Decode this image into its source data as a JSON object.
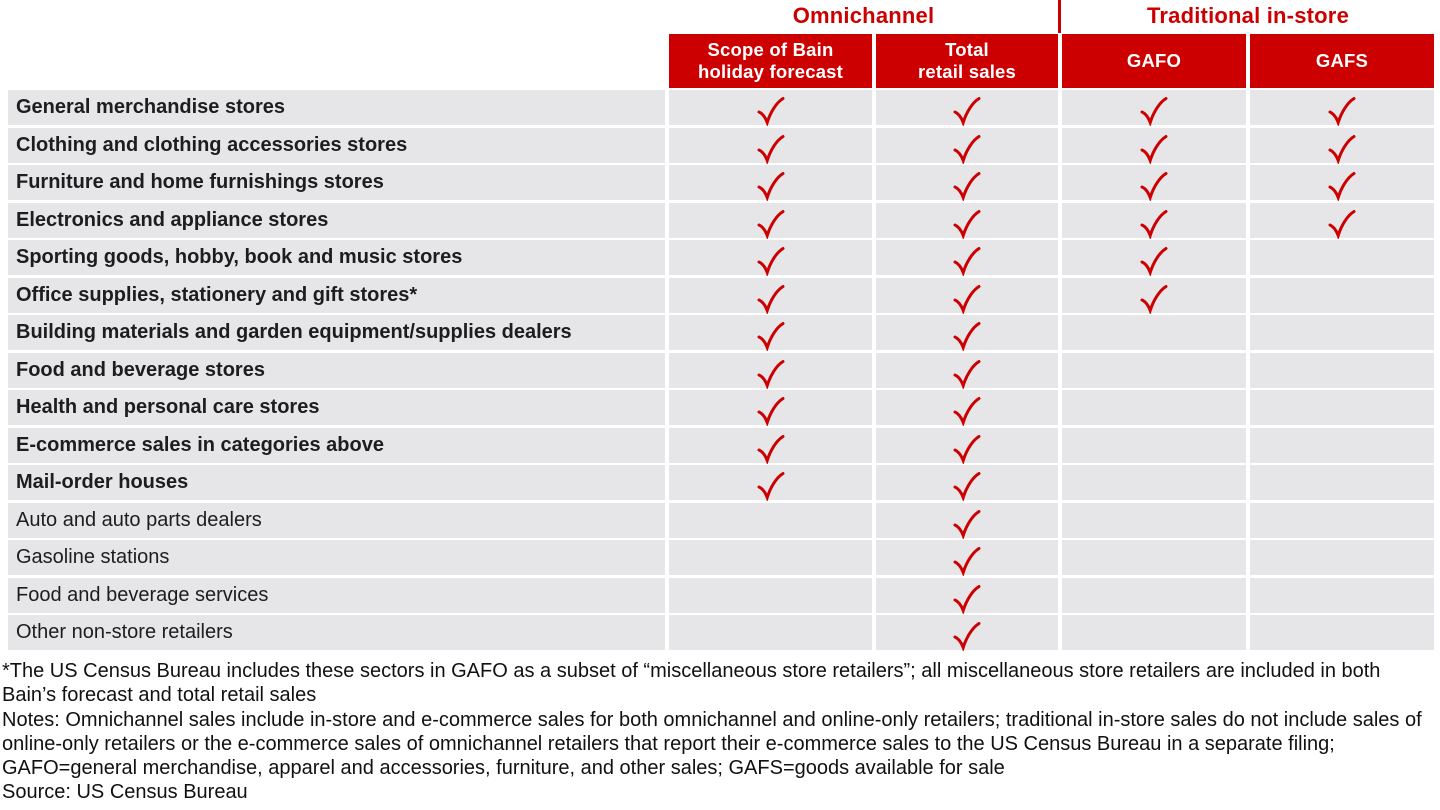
{
  "colors": {
    "red": "#cc0000",
    "row_gray": "#e6e6e8",
    "text_dark": "#1d1d1d"
  },
  "chart_data": {
    "type": "table",
    "title": "",
    "legend_position": "none",
    "column_groups": [
      {
        "label": "Omnichannel",
        "columns": [
          "Scope of Bain\nholiday forecast",
          "Total\nretail sales"
        ]
      },
      {
        "label": "Traditional in-store",
        "columns": [
          "GAFO",
          "GAFS"
        ]
      }
    ],
    "columns": [
      "Scope of Bain holiday forecast",
      "Total retail sales",
      "GAFO",
      "GAFS"
    ],
    "rows": [
      {
        "label": "General merchandise stores",
        "bold": true,
        "checks": [
          true,
          true,
          true,
          true
        ]
      },
      {
        "label": "Clothing and clothing accessories stores",
        "bold": true,
        "checks": [
          true,
          true,
          true,
          true
        ]
      },
      {
        "label": "Furniture and home furnishings stores",
        "bold": true,
        "checks": [
          true,
          true,
          true,
          true
        ]
      },
      {
        "label": "Electronics and appliance stores",
        "bold": true,
        "checks": [
          true,
          true,
          true,
          true
        ]
      },
      {
        "label": "Sporting goods, hobby, book and music stores",
        "bold": true,
        "checks": [
          true,
          true,
          true,
          false
        ]
      },
      {
        "label": "Office supplies, stationery and gift stores*",
        "bold": true,
        "checks": [
          true,
          true,
          true,
          false
        ]
      },
      {
        "label": "Building materials and garden equipment/supplies dealers",
        "bold": true,
        "checks": [
          true,
          true,
          false,
          false
        ]
      },
      {
        "label": "Food and beverage stores",
        "bold": true,
        "checks": [
          true,
          true,
          false,
          false
        ]
      },
      {
        "label": "Health and personal care stores",
        "bold": true,
        "checks": [
          true,
          true,
          false,
          false
        ]
      },
      {
        "label": "E-commerce sales in categories above",
        "bold": true,
        "checks": [
          true,
          true,
          false,
          false
        ]
      },
      {
        "label": "Mail-order houses",
        "bold": true,
        "checks": [
          true,
          true,
          false,
          false
        ]
      },
      {
        "label": "Auto and auto parts dealers",
        "bold": false,
        "checks": [
          false,
          true,
          false,
          false
        ]
      },
      {
        "label": "Gasoline stations",
        "bold": false,
        "checks": [
          false,
          true,
          false,
          false
        ]
      },
      {
        "label": "Food and beverage services",
        "bold": false,
        "checks": [
          false,
          true,
          false,
          false
        ]
      },
      {
        "label": "Other non-store retailers",
        "bold": false,
        "checks": [
          false,
          true,
          false,
          false
        ]
      }
    ]
  },
  "footnotes": {
    "asterisk": "*The US Census Bureau includes these sectors in GAFO as a subset of “miscellaneous store retailers”; all miscellaneous store retailers are included in both Bain’s forecast and total retail sales",
    "notes": "Notes: Omnichannel sales include in-store and e-commerce sales for both omnichannel and online-only retailers; traditional in-store sales do not include sales of online-only retailers or the e-commerce sales of omnichannel retailers that report their e-commerce sales to the US Census Bureau in a separate filing; GAFO=general merchandise, apparel and accessories, furniture, and other sales; GAFS=goods available for sale",
    "source": "Source: US Census Bureau"
  }
}
